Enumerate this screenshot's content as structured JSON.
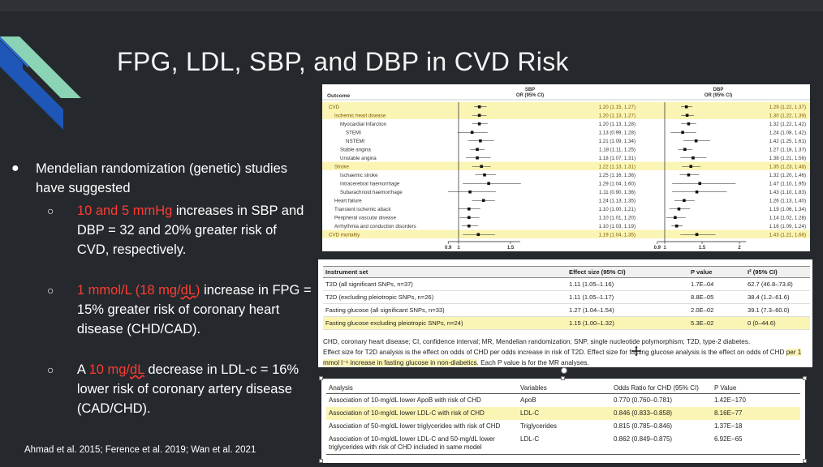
{
  "slide": {
    "title": "FPG, LDL, SBP, and DBP in CVD Risk",
    "bullet": "Mendelian randomization (genetic) studies have suggested",
    "sub1": {
      "red": "10 and 5 mmHg",
      "rest": " increases in SBP and DBP = 32 and 20% greater risk of CVD, respectively."
    },
    "sub2": {
      "red_a": "1 mmol/L (18 mg/",
      "red_b": "dL",
      "red_c": ")",
      "rest": " increase in FPG = 15% greater risk of coronary heart disease (CHD/CAD)."
    },
    "sub3": {
      "pre": "A ",
      "red_a": "10 mg/",
      "red_b": "dL",
      "rest": " decrease in LDL-c = 16% lower risk of coronary artery disease (CAD/CHD)."
    },
    "citation": "Ahmad et al. 2015; Ference et al. 2019; Wan et al. 2021",
    "colors": {
      "background": "#25292e",
      "accent_red": "#ff3b30",
      "highlight": "#fbf5b5"
    }
  },
  "forest": {
    "outcome_header": "Outcome",
    "sbp_header": "SBP",
    "dbp_header": "DBP",
    "or_header": "OR (95% CI)",
    "rows": [
      {
        "label": "CVD",
        "indent": 0,
        "hl": true,
        "sbp": 1.2,
        "sbp_lo": 1.15,
        "sbp_hi": 1.27,
        "sbp_text": "1.20 (1.15, 1.27)",
        "dbp": 1.29,
        "dbp_lo": 1.22,
        "dbp_hi": 1.37,
        "dbp_text": "1.29 (1.22, 1.37)"
      },
      {
        "label": "Ischemic heart disease",
        "indent": 1,
        "hl": true,
        "sbp": 1.2,
        "sbp_lo": 1.13,
        "sbp_hi": 1.27,
        "sbp_text": "1.20 (1.13, 1.27)",
        "dbp": 1.3,
        "dbp_lo": 1.22,
        "dbp_hi": 1.39,
        "dbp_text": "1.30 (1.22, 1.39)"
      },
      {
        "label": "Myocardial Infarction",
        "indent": 2,
        "hl": false,
        "sbp": 1.2,
        "sbp_lo": 1.13,
        "sbp_hi": 1.28,
        "sbp_text": "1.20 (1.13, 1.28)",
        "dbp": 1.32,
        "dbp_lo": 1.22,
        "dbp_hi": 1.42,
        "dbp_text": "1.32 (1.22, 1.42)"
      },
      {
        "label": "STEMI",
        "indent": 3,
        "hl": false,
        "sbp": 1.13,
        "sbp_lo": 0.99,
        "sbp_hi": 1.28,
        "sbp_text": "1.13 (0.99, 1.28)",
        "dbp": 1.24,
        "dbp_lo": 1.08,
        "dbp_hi": 1.42,
        "dbp_text": "1.24 (1.08, 1.42)"
      },
      {
        "label": "NSTEMI",
        "indent": 3,
        "hl": false,
        "sbp": 1.21,
        "sbp_lo": 1.09,
        "sbp_hi": 1.34,
        "sbp_text": "1.21 (1.09, 1.34)",
        "dbp": 1.42,
        "dbp_lo": 1.25,
        "dbp_hi": 1.61,
        "dbp_text": "1.42 (1.25, 1.61)"
      },
      {
        "label": "Stable angina",
        "indent": 2,
        "hl": false,
        "sbp": 1.18,
        "sbp_lo": 1.11,
        "sbp_hi": 1.25,
        "sbp_text": "1.18 (1.11, 1.25)",
        "dbp": 1.27,
        "dbp_lo": 1.18,
        "dbp_hi": 1.37,
        "dbp_text": "1.27 (1.18, 1.37)"
      },
      {
        "label": "Unstable angina",
        "indent": 2,
        "hl": false,
        "sbp": 1.18,
        "sbp_lo": 1.07,
        "sbp_hi": 1.31,
        "sbp_text": "1.18 (1.07, 1.31)",
        "dbp": 1.38,
        "dbp_lo": 1.21,
        "dbp_hi": 1.56,
        "dbp_text": "1.38 (1.21, 1.56)"
      },
      {
        "label": "Stroke",
        "indent": 1,
        "hl": true,
        "sbp": 1.22,
        "sbp_lo": 1.13,
        "sbp_hi": 1.31,
        "sbp_text": "1.22 (1.13, 1.31)",
        "dbp": 1.35,
        "dbp_lo": 1.23,
        "dbp_hi": 1.48,
        "dbp_text": "1.35 (1.23, 1.48)"
      },
      {
        "label": "Ischaemic stroke",
        "indent": 2,
        "hl": false,
        "sbp": 1.25,
        "sbp_lo": 1.16,
        "sbp_hi": 1.36,
        "sbp_text": "1.25 (1.16, 1.36)",
        "dbp": 1.32,
        "dbp_lo": 1.2,
        "dbp_hi": 1.46,
        "dbp_text": "1.32 (1.20, 1.46)"
      },
      {
        "label": "Intracerebral haemorrhage",
        "indent": 2,
        "hl": false,
        "sbp": 1.29,
        "sbp_lo": 1.04,
        "sbp_hi": 1.6,
        "sbp_text": "1.29 (1.04, 1.60)",
        "dbp": 1.47,
        "dbp_lo": 1.1,
        "dbp_hi": 1.95,
        "dbp_text": "1.47 (1.10, 1.95)"
      },
      {
        "label": "Subarachnoid haemorrhage",
        "indent": 2,
        "hl": false,
        "sbp": 1.11,
        "sbp_lo": 0.9,
        "sbp_hi": 1.36,
        "sbp_text": "1.11 (0.90, 1.36)",
        "dbp": 1.43,
        "dbp_lo": 1.1,
        "dbp_hi": 1.83,
        "dbp_text": "1.43 (1.10, 1.83)"
      },
      {
        "label": "Heart failure",
        "indent": 1,
        "hl": false,
        "sbp": 1.24,
        "sbp_lo": 1.13,
        "sbp_hi": 1.35,
        "sbp_text": "1.24 (1.13, 1.35)",
        "dbp": 1.26,
        "dbp_lo": 1.13,
        "dbp_hi": 1.4,
        "dbp_text": "1.26 (1.13, 1.40)"
      },
      {
        "label": "Transient ischemic attack",
        "indent": 1,
        "hl": false,
        "sbp": 1.1,
        "sbp_lo": 1.0,
        "sbp_hi": 1.21,
        "sbp_text": "1.10 (1.00, 1.21)",
        "dbp": 1.19,
        "dbp_lo": 1.06,
        "dbp_hi": 1.34,
        "dbp_text": "1.19 (1.06, 1.34)"
      },
      {
        "label": "Peripheral vascular disease",
        "indent": 1,
        "hl": false,
        "sbp": 1.1,
        "sbp_lo": 1.01,
        "sbp_hi": 1.2,
        "sbp_text": "1.10 (1.01, 1.20)",
        "dbp": 1.14,
        "dbp_lo": 1.02,
        "dbp_hi": 1.28,
        "dbp_text": "1.14 (1.02, 1.28)"
      },
      {
        "label": "Arrhythmia and conduction disorders",
        "indent": 1,
        "hl": false,
        "sbp": 1.1,
        "sbp_lo": 1.03,
        "sbp_hi": 1.19,
        "sbp_text": "1.10 (1.03, 1.19)",
        "dbp": 1.16,
        "dbp_lo": 1.09,
        "dbp_hi": 1.24,
        "dbp_text": "1.16 (1.09, 1.24)"
      },
      {
        "label": "CVD mortality",
        "indent": 0,
        "hl": true,
        "sbp": 1.19,
        "sbp_lo": 1.04,
        "sbp_hi": 1.35,
        "sbp_text": "1.19 (1.04, 1.35)",
        "dbp": 1.43,
        "dbp_lo": 1.21,
        "dbp_hi": 1.68,
        "dbp_text": "1.43 (1.21, 1.68)"
      }
    ],
    "axis_ticks": [
      0.9,
      1,
      1.5,
      2
    ],
    "axis_tick_labels": [
      "0.9",
      "1",
      "1.5",
      "2"
    ]
  },
  "instrument_table": {
    "headers": [
      "Instrument set",
      "Effect size (95% CI)",
      "P value",
      "I² (95% CI)"
    ],
    "rows": [
      {
        "c0": "T2D (all significant SNPs, n=37)",
        "c1": "1.11 (1.05–1.16)",
        "c2": "1.7E–04",
        "c3": "62.7 (46.8–73.8)",
        "hl": false
      },
      {
        "c0": "T2D (excluding pleiotropic SNPs, n=26)",
        "c1": "1.11 (1.05–1.17)",
        "c2": "8.8E–05",
        "c3": "38.4 (1.2–61.6)",
        "hl": false
      },
      {
        "c0": "Fasting glucose (all significant SNPs, n=33)",
        "c1": "1.27 (1.04–1.54)",
        "c2": "2.0E–02",
        "c3": "39.1 (7.3–60.0)",
        "hl": false
      },
      {
        "c0": "Fasting glucose excluding pleiotropic SNPs, n=24)",
        "c1": "1.15 (1.00–1.32)",
        "c2": "5.3E–02",
        "c3": "0 (0–44.6)",
        "hl": true
      }
    ],
    "caption1": "CHD, coronary heart disease; CI, confidence interval; MR, Mendelian randomization; SNP, single nucleotide polymorphism; T2D, type-2 diabetes.",
    "caption2a": "Effect size for T2D analysis is the effect on odds of CHD per odds increase in risk of T2D. Effect size for fasting glucose analysis is the effect on odds of CHD ",
    "caption2b": "per 1 mmol l⁻¹ increase in fasting glucose in non-diabetics",
    "caption2c": ". Each P value is for the MR analyses."
  },
  "ldl_table": {
    "headers": [
      "Analysis",
      "Variables",
      "Odds Ratio for CHD (95% CI)",
      "P Value"
    ],
    "rows": [
      {
        "c0": "Association of 10-mg/dL lower ApoB with risk of CHD",
        "c1": "ApoB",
        "c2": "0.770 (0.760–0.781)",
        "c3": "1.42E−170",
        "hl": false
      },
      {
        "c0": "Association of 10-mg/dL lower LDL-C with risk of CHD",
        "c1": "LDL-C",
        "c2": "0.846 (0.833–0.858)",
        "c3": "8.16E−77",
        "hl": true
      },
      {
        "c0": "Association of 50-mg/dL lower triglycerides with risk of CHD",
        "c1": "Triglycerides",
        "c2": "0.815 (0.785–0.846)",
        "c3": "1.37E−18",
        "hl": false
      },
      {
        "c0": "Association of 10-mg/dL lower LDL-C and 50-mg/dL lower triglycerides with risk of CHD included in same model",
        "c1": "LDL-C",
        "c2": "0.862 (0.849–0.875)",
        "c3": "6.92E−65",
        "hl": false
      }
    ]
  }
}
